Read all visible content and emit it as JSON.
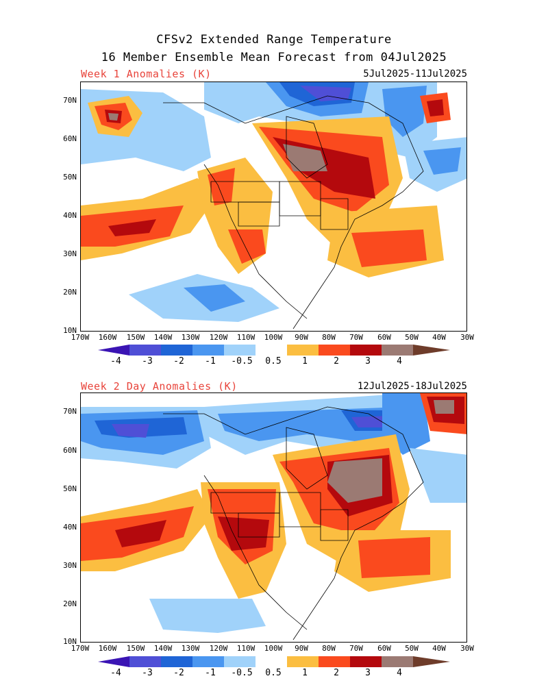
{
  "title_line1": "CFSv2 Extended Range Temperature",
  "title_line2": "16 Member Ensemble Mean Forecast from 04Jul2025",
  "panels": [
    {
      "title": "Week 1 Anomalies (K)",
      "dates": "5Jul2025-11Jul2025"
    },
    {
      "title": "Week 2 Day Anomalies (K)",
      "dates": "12Jul2025-18Jul2025"
    }
  ],
  "lat_labels": [
    "70N",
    "60N",
    "50N",
    "40N",
    "30N",
    "20N",
    "10N"
  ],
  "lon_labels": [
    "170W",
    "160W",
    "150W",
    "140W",
    "130W",
    "120W",
    "110W",
    "100W",
    "90W",
    "80W",
    "70W",
    "60W",
    "50W",
    "40W",
    "30W"
  ],
  "colorbar_labels": [
    "-4",
    "-3",
    "-2",
    "-1",
    "-0.5",
    "0.5",
    "1",
    "2",
    "3",
    "4"
  ],
  "colors": {
    "c_m4": "#3a14b4",
    "c_m3": "#4f4fd6",
    "c_m2": "#1f65d6",
    "c_m1": "#4a96f0",
    "c_m05": "#a0d2fa",
    "c_0": "#ffffff",
    "c_05": "#fbbe41",
    "c_1": "#fa4a1e",
    "c_2": "#b4090d",
    "c_3": "#9b7a73",
    "c_4": "#6e3c2a",
    "title_red": "#e8433a"
  }
}
